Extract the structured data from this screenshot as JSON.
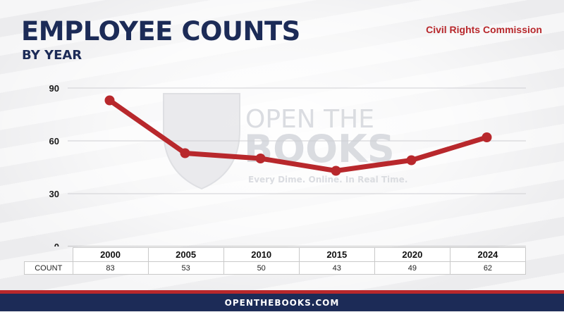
{
  "header": {
    "title": "EMPLOYEE COUNTS",
    "subtitle": "BY YEAR",
    "agency": "Civil Rights Commission"
  },
  "watermark": {
    "line1": "OPEN THE",
    "line2": "BOOKS",
    "tagline": "Every Dime. Online. In Real Time."
  },
  "table": {
    "row_label": "COUNT"
  },
  "footer": {
    "text": "OPENTHEBOOKS.COM"
  },
  "colors": {
    "navy": "#1c2b57",
    "red": "#b8282c"
  },
  "chart_data": {
    "type": "line",
    "title": "EMPLOYEE COUNTS",
    "subtitle": "BY YEAR",
    "categories": [
      "2000",
      "2005",
      "2010",
      "2015",
      "2020",
      "2024"
    ],
    "values": [
      83,
      53,
      50,
      43,
      49,
      62
    ],
    "ylim": [
      0,
      90
    ],
    "yticks": [
      0,
      30,
      60,
      90
    ],
    "grid": true,
    "line_color": "#b8282c"
  }
}
